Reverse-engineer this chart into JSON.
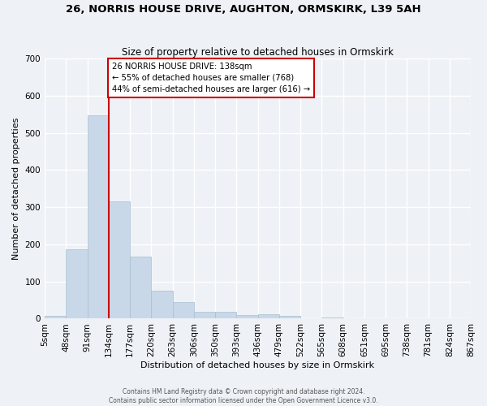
{
  "title": "26, NORRIS HOUSE DRIVE, AUGHTON, ORMSKIRK, L39 5AH",
  "subtitle": "Size of property relative to detached houses in Ormskirk",
  "xlabel": "Distribution of detached houses by size in Ormskirk",
  "ylabel": "Number of detached properties",
  "bar_heights": [
    8,
    187,
    548,
    315,
    168,
    76,
    44,
    18,
    18,
    10,
    11,
    7,
    0,
    4,
    0,
    0,
    0,
    0,
    0,
    0
  ],
  "bin_labels": [
    "5sqm",
    "48sqm",
    "91sqm",
    "134sqm",
    "177sqm",
    "220sqm",
    "263sqm",
    "306sqm",
    "350sqm",
    "393sqm",
    "436sqm",
    "479sqm",
    "522sqm",
    "565sqm",
    "608sqm",
    "651sqm",
    "695sqm",
    "738sqm",
    "781sqm",
    "824sqm",
    "867sqm"
  ],
  "bar_color": "#c8d8e8",
  "bar_edge_color": "#a8bfd0",
  "background_color": "#eef2f7",
  "grid_color": "#ffffff",
  "vline_color": "#cc0000",
  "annotation_text": "26 NORRIS HOUSE DRIVE: 138sqm\n← 55% of detached houses are smaller (768)\n44% of semi-detached houses are larger (616) →",
  "annotation_box_edgecolor": "#cc0000",
  "ylim": [
    0,
    700
  ],
  "yticks": [
    0,
    100,
    200,
    300,
    400,
    500,
    600,
    700
  ],
  "footer_line1": "Contains HM Land Registry data © Crown copyright and database right 2024.",
  "footer_line2": "Contains public sector information licensed under the Open Government Licence v3.0."
}
